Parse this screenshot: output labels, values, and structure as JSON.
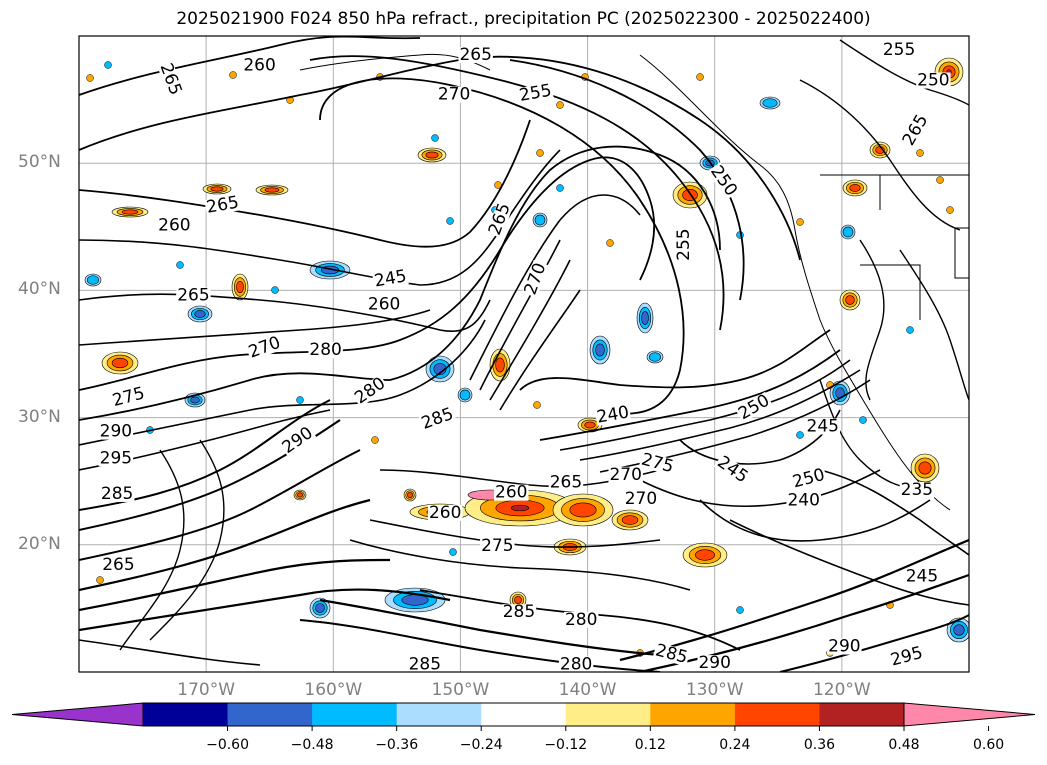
{
  "title": "2025021900 F024 850 hPa refract., precipitation PC (2025022300 - 2025022400)",
  "map": {
    "lon_range": [
      -180,
      -110
    ],
    "lat_range": [
      10,
      60
    ],
    "lat_labels": [
      {
        "lat": 50,
        "text": "50°N"
      },
      {
        "lat": 40,
        "text": "40°N"
      },
      {
        "lat": 30,
        "text": "30°N"
      },
      {
        "lat": 20,
        "text": "20°N"
      }
    ],
    "lon_labels": [
      {
        "lon": -170,
        "text": "170°W"
      },
      {
        "lon": -160,
        "text": "160°W"
      },
      {
        "lon": -150,
        "text": "150°W"
      },
      {
        "lon": -140,
        "text": "140°W"
      },
      {
        "lon": -130,
        "text": "130°W"
      },
      {
        "lon": -120,
        "text": "120°W"
      }
    ],
    "gridlines": true
  },
  "contour_labels": [
    {
      "text": "265",
      "lon": -172.8,
      "lat": 56.6,
      "rot": 70
    },
    {
      "text": "260",
      "lon": -172.5,
      "lat": 45.1,
      "rot": 0
    },
    {
      "text": "265",
      "lon": -168.7,
      "lat": 46.7,
      "rot": -10
    },
    {
      "text": "265",
      "lon": -171.0,
      "lat": 39.6,
      "rot": 0
    },
    {
      "text": "270",
      "lon": -165.4,
      "lat": 35.5,
      "rot": -20
    },
    {
      "text": "275",
      "lon": -176.1,
      "lat": 31.6,
      "rot": -15
    },
    {
      "text": "290",
      "lon": -177.1,
      "lat": 28.9,
      "rot": 0
    },
    {
      "text": "295",
      "lon": -177.1,
      "lat": 26.8,
      "rot": 0
    },
    {
      "text": "280",
      "lon": -160.6,
      "lat": 35.3,
      "rot": 0
    },
    {
      "text": "290",
      "lon": -162.8,
      "lat": 28.2,
      "rot": -35
    },
    {
      "text": "280",
      "lon": -157.1,
      "lat": 32.1,
      "rot": -35
    },
    {
      "text": "285",
      "lon": -151.8,
      "lat": 29.9,
      "rot": -20
    },
    {
      "text": "245",
      "lon": -155.5,
      "lat": 40.9,
      "rot": -10
    },
    {
      "text": "260",
      "lon": -156.0,
      "lat": 38.9,
      "rot": 0
    },
    {
      "text": "260",
      "lon": -165.8,
      "lat": 57.7,
      "rot": 0
    },
    {
      "text": "265",
      "lon": -148.8,
      "lat": 58.5,
      "rot": 0
    },
    {
      "text": "270",
      "lon": -150.5,
      "lat": 55.4,
      "rot": 0
    },
    {
      "text": "255",
      "lon": -144.1,
      "lat": 55.5,
      "rot": -10
    },
    {
      "text": "265",
      "lon": -146.9,
      "lat": 45.6,
      "rot": -70
    },
    {
      "text": "270",
      "lon": -144.1,
      "lat": 40.9,
      "rot": -70
    },
    {
      "text": "250",
      "lon": -129.3,
      "lat": 48.6,
      "rot": 55
    },
    {
      "text": "255",
      "lon": -132.4,
      "lat": 43.6,
      "rot": -90
    },
    {
      "text": "240",
      "lon": -138.0,
      "lat": 30.2,
      "rot": -10
    },
    {
      "text": "250",
      "lon": -126.9,
      "lat": 30.8,
      "rot": -30
    },
    {
      "text": "245",
      "lon": -121.5,
      "lat": 29.3,
      "rot": 0
    },
    {
      "text": "245",
      "lon": -128.6,
      "lat": 25.9,
      "rot": 35
    },
    {
      "text": "250",
      "lon": -122.6,
      "lat": 25.2,
      "rot": -15
    },
    {
      "text": "240",
      "lon": -123.0,
      "lat": 23.5,
      "rot": 0
    },
    {
      "text": "235",
      "lon": -114.1,
      "lat": 24.3,
      "rot": 0
    },
    {
      "text": "265",
      "lon": -141.7,
      "lat": 24.9,
      "rot": 0
    },
    {
      "text": "270",
      "lon": -137.0,
      "lat": 25.5,
      "rot": 0
    },
    {
      "text": "275",
      "lon": -134.5,
      "lat": 26.4,
      "rot": 15
    },
    {
      "text": "270",
      "lon": -135.8,
      "lat": 23.6,
      "rot": 0
    },
    {
      "text": "260",
      "lon": -146.0,
      "lat": 24.1,
      "rot": 0
    },
    {
      "text": "260",
      "lon": -151.2,
      "lat": 22.5,
      "rot": 0
    },
    {
      "text": "275",
      "lon": -147.1,
      "lat": 19.9,
      "rot": 0
    },
    {
      "text": "285",
      "lon": -145.4,
      "lat": 14.7,
      "rot": 0
    },
    {
      "text": "280",
      "lon": -140.5,
      "lat": 14.1,
      "rot": 0
    },
    {
      "text": "280",
      "lon": -140.9,
      "lat": 10.6,
      "rot": 0
    },
    {
      "text": "285",
      "lon": -133.4,
      "lat": 11.4,
      "rot": 15
    },
    {
      "text": "290",
      "lon": -130.0,
      "lat": 10.7,
      "rot": 0
    },
    {
      "text": "290",
      "lon": -119.8,
      "lat": 12.0,
      "rot": 0
    },
    {
      "text": "295",
      "lon": -114.9,
      "lat": 11.2,
      "rot": -15
    },
    {
      "text": "245",
      "lon": -113.7,
      "lat": 17.5,
      "rot": 0
    },
    {
      "text": "265",
      "lon": -176.9,
      "lat": 18.4,
      "rot": 0
    },
    {
      "text": "285",
      "lon": -152.8,
      "lat": 10.6,
      "rot": 0
    },
    {
      "text": "255",
      "lon": -115.5,
      "lat": 58.9,
      "rot": 0
    },
    {
      "text": "250",
      "lon": -112.8,
      "lat": 56.5,
      "rot": 0
    },
    {
      "text": "265",
      "lon": -114.2,
      "lat": 52.6,
      "rot": -60
    },
    {
      "text": "285",
      "lon": -177.0,
      "lat": 24.0,
      "rot": 0
    }
  ],
  "colorbar": {
    "ticks": [
      "−0.60",
      "−0.48",
      "−0.36",
      "−0.24",
      "−0.12",
      "0.12",
      "0.24",
      "0.36",
      "0.48",
      "0.60"
    ],
    "colors": [
      "#9933cc",
      "#000099",
      "#3366cc",
      "#00bbff",
      "#aaddff",
      "#ffffff",
      "#ffee88",
      "#ffa500",
      "#ff4500",
      "#b22222",
      "#ff88aa"
    ],
    "extend": "both"
  },
  "precip_colors": {
    "neg_light": "#aaddff",
    "neg_mid": "#00bbff",
    "neg_strong": "#3366cc",
    "pos_light": "#ffee88",
    "pos_mid": "#ffa500",
    "pos_strong": "#ff4500",
    "pos_very": "#b22222",
    "pos_extreme": "#ff88aa"
  }
}
